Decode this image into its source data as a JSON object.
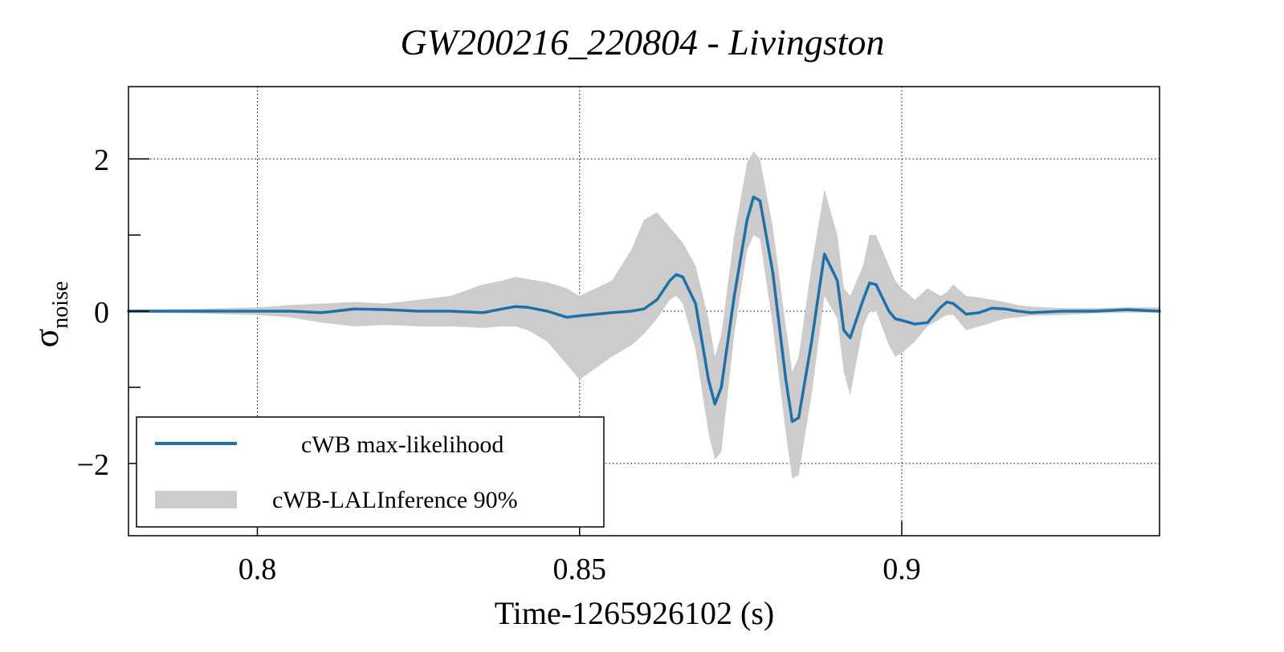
{
  "chart_data": {
    "type": "line",
    "title": "GW200216_220804 - Livingston",
    "xlabel": "Time-1265926102 (s)",
    "ylabel": "σ",
    "ylabel_sub": "noise",
    "xlim": [
      0.78,
      0.94
    ],
    "ylim": [
      -2.95,
      2.95
    ],
    "xticks": [
      0.8,
      0.85,
      0.9
    ],
    "xtick_labels": [
      "0.8",
      "0.85",
      "0.9"
    ],
    "yticks": [
      -2,
      0,
      2
    ],
    "ytick_labels": [
      "−2",
      "0",
      "2"
    ],
    "yminor_ticks": [
      -1,
      1
    ],
    "grid": true,
    "legend_position": "bottom-left",
    "series": [
      {
        "name": "cWB max-likelihood",
        "color": "#1f6fa8",
        "x": [
          0.78,
          0.79,
          0.8,
          0.805,
          0.81,
          0.815,
          0.82,
          0.825,
          0.83,
          0.835,
          0.838,
          0.84,
          0.842,
          0.845,
          0.848,
          0.85,
          0.855,
          0.858,
          0.86,
          0.862,
          0.864,
          0.865,
          0.866,
          0.868,
          0.87,
          0.871,
          0.872,
          0.874,
          0.876,
          0.877,
          0.878,
          0.88,
          0.882,
          0.883,
          0.884,
          0.886,
          0.888,
          0.89,
          0.891,
          0.892,
          0.894,
          0.895,
          0.896,
          0.898,
          0.899,
          0.9,
          0.902,
          0.904,
          0.906,
          0.907,
          0.908,
          0.91,
          0.912,
          0.914,
          0.916,
          0.918,
          0.92,
          0.925,
          0.93,
          0.935,
          0.94
        ],
        "y": [
          0.0,
          0.0,
          0.0,
          0.0,
          -0.02,
          0.03,
          0.02,
          0.0,
          0.0,
          -0.02,
          0.03,
          0.06,
          0.05,
          0.0,
          -0.08,
          -0.06,
          -0.02,
          0.0,
          0.03,
          0.15,
          0.4,
          0.48,
          0.45,
          0.1,
          -0.9,
          -1.22,
          -1.0,
          0.2,
          1.2,
          1.5,
          1.45,
          0.5,
          -0.9,
          -1.45,
          -1.4,
          -0.4,
          0.75,
          0.4,
          -0.25,
          -0.35,
          0.15,
          0.37,
          0.35,
          0.0,
          -0.1,
          -0.12,
          -0.17,
          -0.15,
          0.05,
          0.12,
          0.1,
          -0.04,
          -0.02,
          0.04,
          0.03,
          0.0,
          -0.02,
          0.0,
          0.0,
          0.02,
          0.0
        ]
      }
    ],
    "bands": [
      {
        "name": "cWB-LALInference 90%",
        "color": "#cccccc",
        "x": [
          0.78,
          0.79,
          0.8,
          0.805,
          0.81,
          0.815,
          0.82,
          0.825,
          0.83,
          0.835,
          0.838,
          0.84,
          0.842,
          0.845,
          0.848,
          0.85,
          0.855,
          0.858,
          0.86,
          0.862,
          0.864,
          0.865,
          0.866,
          0.868,
          0.87,
          0.871,
          0.872,
          0.874,
          0.876,
          0.877,
          0.878,
          0.88,
          0.882,
          0.883,
          0.884,
          0.886,
          0.888,
          0.89,
          0.891,
          0.892,
          0.894,
          0.895,
          0.896,
          0.898,
          0.899,
          0.9,
          0.902,
          0.904,
          0.906,
          0.907,
          0.908,
          0.91,
          0.912,
          0.914,
          0.916,
          0.918,
          0.92,
          0.925,
          0.93,
          0.935,
          0.94
        ],
        "lower": [
          -0.02,
          -0.03,
          -0.05,
          -0.08,
          -0.15,
          -0.2,
          -0.18,
          -0.2,
          -0.2,
          -0.22,
          -0.2,
          -0.2,
          -0.25,
          -0.4,
          -0.7,
          -0.9,
          -0.6,
          -0.45,
          -0.3,
          -0.1,
          0.15,
          0.2,
          0.1,
          -0.5,
          -1.6,
          -1.95,
          -1.85,
          -0.3,
          0.8,
          1.0,
          0.95,
          -0.2,
          -1.6,
          -2.2,
          -2.15,
          -1.1,
          0.2,
          -0.1,
          -0.8,
          -1.1,
          -0.2,
          0.0,
          0.0,
          -0.45,
          -0.6,
          -0.55,
          -0.4,
          -0.2,
          -0.1,
          -0.05,
          -0.05,
          -0.25,
          -0.2,
          -0.15,
          -0.1,
          -0.08,
          -0.06,
          -0.05,
          -0.03,
          -0.02,
          -0.02
        ],
        "upper": [
          0.02,
          0.03,
          0.05,
          0.08,
          0.1,
          0.12,
          0.1,
          0.15,
          0.2,
          0.35,
          0.4,
          0.45,
          0.42,
          0.38,
          0.3,
          0.2,
          0.4,
          0.8,
          1.2,
          1.3,
          1.1,
          1.0,
          0.9,
          0.6,
          -0.1,
          -0.6,
          -0.3,
          1.0,
          1.95,
          2.1,
          2.0,
          1.1,
          -0.2,
          -0.8,
          -0.6,
          0.6,
          1.6,
          1.0,
          0.3,
          0.2,
          0.6,
          1.0,
          1.0,
          0.6,
          0.4,
          0.3,
          0.15,
          0.3,
          0.2,
          0.25,
          0.35,
          0.2,
          0.18,
          0.15,
          0.12,
          0.08,
          0.06,
          0.04,
          0.04,
          0.05,
          0.05
        ]
      }
    ]
  }
}
